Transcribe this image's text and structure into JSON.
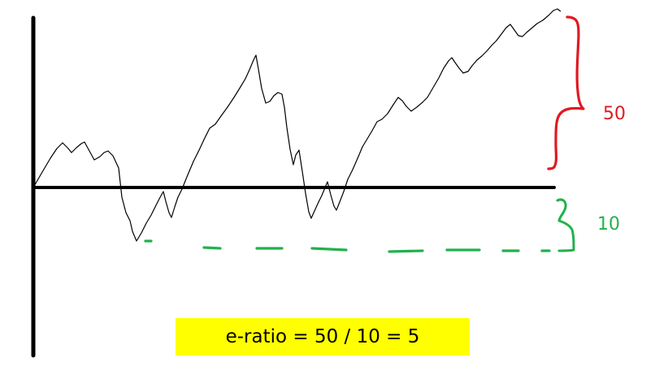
{
  "annotations": {
    "gain_label": "50",
    "drawdown_label": "10",
    "result_text": "e-ratio = 50 / 10 = 5"
  },
  "colors": {
    "gain": "#e01b22",
    "drawdown": "#22b14c",
    "result_bg": "#ffff00",
    "axis": "#000000",
    "price_line": "#000000"
  }
}
